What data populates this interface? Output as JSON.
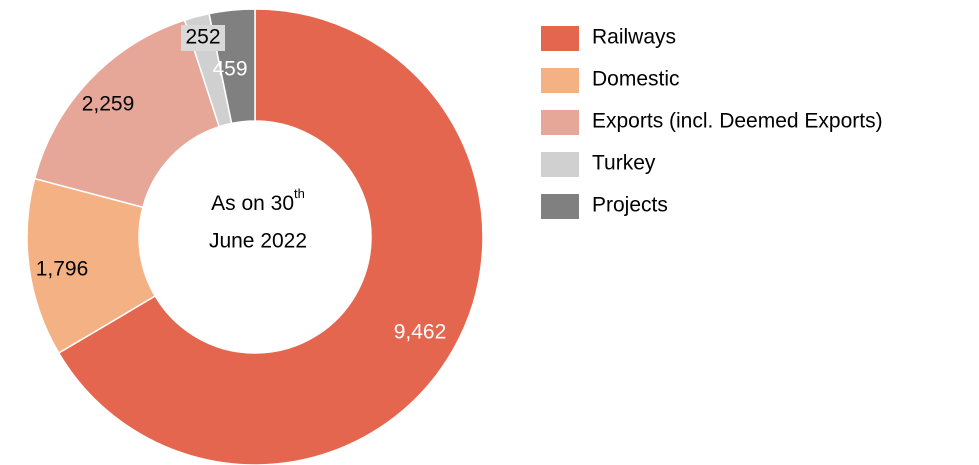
{
  "chart_data": {
    "type": "donut",
    "categories": [
      "Railways",
      "Domestic",
      "Exports (incl. Deemed Exports)",
      "Turkey",
      "Projects"
    ],
    "values": [
      9462,
      1796,
      2259,
      252,
      459
    ],
    "value_labels": [
      "9,462",
      "1,796",
      "2,259",
      "252",
      "459"
    ],
    "colors": [
      "#e5664f",
      "#f4b183",
      "#e6a698",
      "#d0d0d0",
      "#808080"
    ],
    "center_text": {
      "line1": "As on 30",
      "superscript": "th",
      "line2": "June 2022"
    },
    "legend": "right"
  }
}
